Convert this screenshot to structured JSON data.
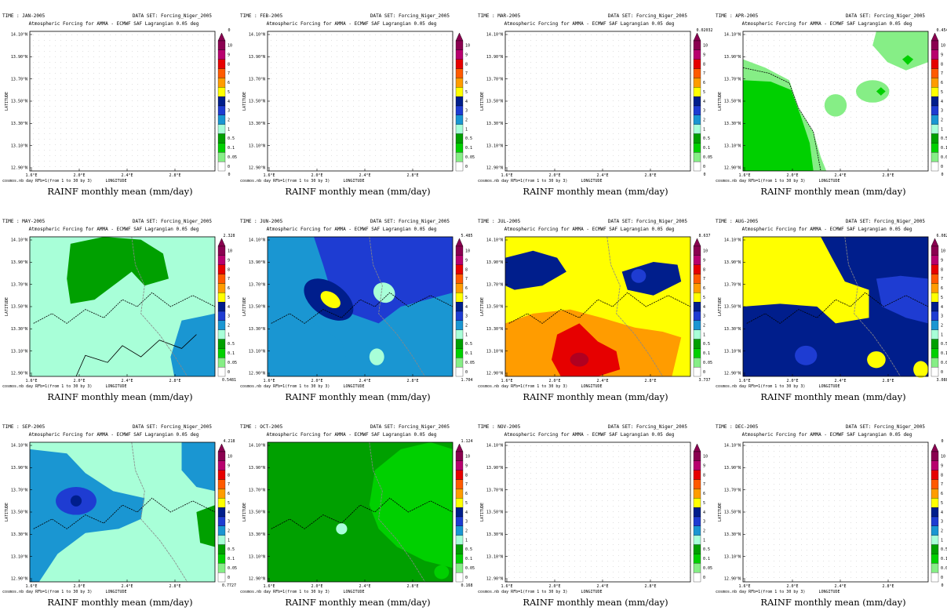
{
  "shared": {
    "dataset": "DATA SET: Forcing_Niger_2005",
    "subtitle": "Atmospheric Forcing for AMMA - ECMWF SAF Lagrangian 0.05 deg",
    "ylabel": "LATITUDE",
    "xlabel": "LONGITUDE",
    "footer_left": "cosmos.nb day RFb=1(from 1 to 30 by 3)",
    "caption": "RAINF monthly mean (mm/day)",
    "yticks": [
      "14.10°N",
      "13.90°N",
      "13.70°N",
      "13.50°N",
      "13.30°N",
      "13.10°N",
      "12.90°N"
    ],
    "xticks": [
      "1.6°E",
      "2.0°E",
      "2.4°E",
      "2.8°E"
    ],
    "colorbar_levels": [
      "10",
      "9",
      "8",
      "7",
      "6",
      "5",
      "4",
      "3",
      "2",
      "1",
      "0.5",
      "0.1",
      "0.05",
      "0"
    ],
    "colorbar_colors": [
      "#8a0050",
      "#b8006e",
      "#e60000",
      "#ff5a00",
      "#ff9c00",
      "#ffff00",
      "#001e8c",
      "#1e3cd2",
      "#1a96d2",
      "#a8ffd8",
      "#00a000",
      "#00d000",
      "#86ee86",
      "#ffffff"
    ],
    "colors": {
      "grid_dot": "#cfcfcf",
      "contour": "#000000",
      "border": "#8c8c8c"
    }
  },
  "chart_data": [
    {
      "type": "heatmap",
      "time": "TIME : JAN-2005",
      "cb_max": "0",
      "cb_min": "0"
    },
    {
      "type": "heatmap",
      "time": "TIME : FEB-2005",
      "cb_max": "",
      "cb_min": ""
    },
    {
      "type": "heatmap",
      "time": "TIME : MAR-2005",
      "cb_max": "0.02032",
      "cb_min": "0"
    },
    {
      "type": "heatmap",
      "time": "TIME : APR-2005",
      "cb_max": "0.454",
      "cb_min": "0"
    },
    {
      "type": "heatmap",
      "time": "TIME : MAY-2005",
      "cb_max": "2.328",
      "cb_min": "0.5481"
    },
    {
      "type": "heatmap",
      "time": "TIME : JUN-2005",
      "cb_max": "5.485",
      "cb_min": "1.704"
    },
    {
      "type": "heatmap",
      "time": "TIME : JUL-2005",
      "cb_max": "8.637",
      "cb_min": "3.737"
    },
    {
      "type": "heatmap",
      "time": "TIME : AUG-2005",
      "cb_max": "6.082",
      "cb_min": "3.088"
    },
    {
      "type": "heatmap",
      "time": "TIME : SEP-2005",
      "cb_max": "4.218",
      "cb_min": "0.7727"
    },
    {
      "type": "heatmap",
      "time": "TIME : OCT-2005",
      "cb_max": "1.124",
      "cb_min": "0.168"
    },
    {
      "type": "heatmap",
      "time": "TIME : NOV-2005",
      "cb_max": "",
      "cb_min": ""
    },
    {
      "type": "heatmap",
      "time": "TIME : DEC-2005",
      "cb_max": "0",
      "cb_min": "0"
    }
  ]
}
